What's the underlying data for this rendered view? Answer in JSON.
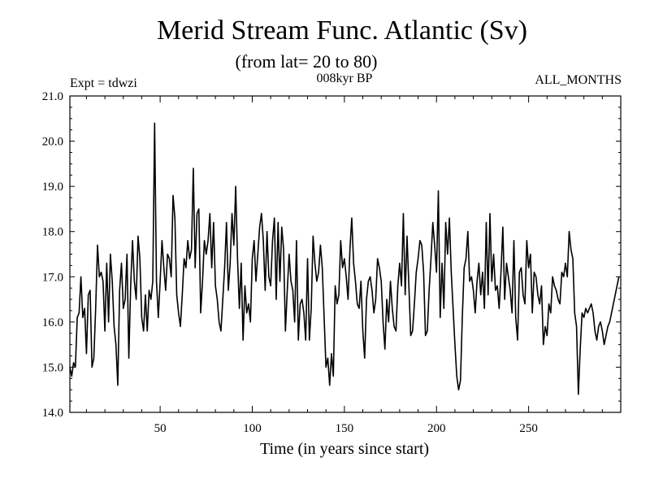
{
  "chart_data": {
    "type": "line",
    "title": "Merid Stream Func. Atlantic (Sv)",
    "subtitle": "(from lat= 20 to 80)",
    "label_left": "Expt = tdwzi",
    "label_center": "008kyr BP",
    "label_right": "ALL_MONTHS",
    "xlabel": "Time (in years since start)",
    "ylabel": "",
    "xlim": [
      1,
      300
    ],
    "ylim": [
      14.0,
      21.0
    ],
    "x_ticks": [
      50,
      100,
      150,
      200,
      250
    ],
    "y_ticks": [
      "14.0",
      "15.0",
      "16.0",
      "17.0",
      "18.0",
      "19.0",
      "20.0",
      "21.0"
    ],
    "series": [
      {
        "name": "tdwzi",
        "color": "#000000",
        "x_start": 1,
        "x_step": 1,
        "values": [
          15.0,
          14.8,
          15.1,
          15.0,
          16.1,
          16.2,
          17.0,
          16.1,
          16.3,
          15.3,
          16.6,
          16.7,
          15.0,
          15.2,
          16.3,
          17.7,
          17.0,
          17.1,
          16.9,
          15.8,
          17.3,
          16.0,
          17.5,
          16.9,
          15.9,
          15.5,
          14.6,
          16.7,
          17.3,
          16.3,
          16.5,
          17.5,
          15.2,
          16.8,
          17.8,
          16.9,
          16.5,
          17.9,
          17.4,
          16.1,
          15.8,
          16.6,
          15.8,
          16.7,
          16.5,
          16.9,
          20.4,
          16.9,
          16.1,
          16.9,
          17.8,
          17.2,
          16.7,
          17.5,
          17.4,
          17.0,
          18.8,
          18.3,
          16.6,
          16.2,
          15.9,
          16.6,
          17.4,
          17.2,
          17.8,
          17.4,
          17.6,
          19.4,
          17.2,
          18.4,
          18.5,
          16.2,
          16.9,
          17.8,
          17.5,
          17.8,
          18.4,
          17.2,
          18.2,
          16.8,
          16.5,
          16.0,
          15.8,
          16.5,
          17.2,
          18.2,
          16.7,
          17.3,
          18.4,
          17.7,
          19.0,
          17.4,
          16.3,
          17.3,
          15.6,
          16.8,
          16.2,
          16.4,
          16.0,
          17.4,
          17.8,
          16.9,
          17.5,
          18.1,
          18.4,
          17.8,
          16.7,
          18.0,
          17.0,
          16.8,
          17.8,
          18.3,
          16.5,
          18.2,
          16.9,
          18.1,
          17.6,
          15.8,
          16.7,
          17.5,
          16.9,
          16.7,
          16.0,
          17.8,
          15.6,
          16.4,
          16.5,
          16.2,
          15.6,
          17.4,
          15.6,
          16.3,
          17.9,
          17.3,
          16.9,
          17.1,
          17.7,
          17.2,
          16.1,
          15.0,
          15.2,
          14.6,
          15.3,
          14.8,
          16.8,
          16.4,
          16.6,
          17.8,
          17.2,
          17.4,
          17.0,
          16.5,
          17.6,
          18.3,
          17.3,
          16.9,
          16.4,
          16.3,
          16.9,
          15.8,
          15.2,
          16.5,
          16.9,
          17.0,
          16.7,
          16.2,
          16.5,
          17.4,
          17.2,
          16.9,
          16.0,
          15.4,
          16.5,
          16.0,
          16.9,
          16.3,
          15.9,
          15.8,
          16.8,
          17.3,
          16.8,
          18.4,
          16.6,
          17.9,
          16.8,
          15.7,
          15.8,
          16.4,
          17.1,
          17.4,
          17.8,
          17.7,
          17.1,
          15.7,
          15.8,
          16.7,
          17.4,
          18.2,
          17.7,
          17.1,
          18.9,
          16.1,
          17.3,
          16.3,
          18.2,
          17.5,
          18.3,
          17.1,
          16.3,
          15.5,
          14.8,
          14.5,
          14.7,
          16.1,
          17.2,
          17.4,
          18.0,
          16.9,
          17.0,
          16.7,
          16.2,
          16.9,
          17.3,
          16.6,
          17.1,
          16.3,
          18.2,
          16.6,
          18.4,
          16.9,
          17.5,
          16.7,
          16.8,
          16.3,
          17.1,
          18.1,
          16.5,
          17.3,
          17.0,
          16.7,
          16.2,
          17.8,
          16.1,
          15.6,
          17.1,
          17.2,
          16.6,
          16.4,
          17.8,
          17.2,
          17.5,
          16.2,
          17.1,
          17.0,
          16.6,
          16.4,
          16.8,
          15.5,
          15.9,
          15.7,
          16.4,
          16.2,
          17.0,
          16.8,
          16.7,
          16.5,
          16.4,
          17.1,
          17.0,
          17.3,
          17.0,
          18.0,
          17.6,
          17.4,
          16.2,
          15.9,
          14.4,
          15.4,
          16.2,
          16.1,
          16.3,
          16.2,
          16.3,
          16.4,
          16.2,
          15.8,
          15.6,
          15.9,
          16.0,
          15.8,
          15.5,
          15.7,
          15.9,
          16.0,
          16.2,
          16.4,
          16.6,
          16.8,
          17.0
        ]
      }
    ]
  }
}
